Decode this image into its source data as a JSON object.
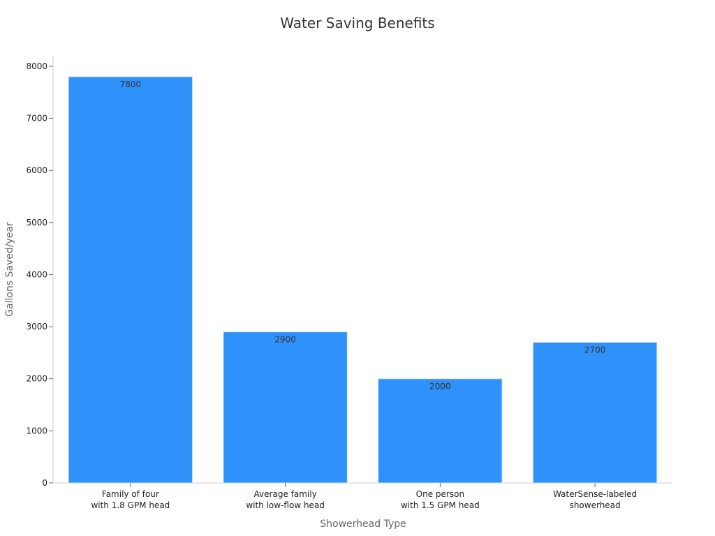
{
  "chart_data": {
    "type": "bar",
    "title": "Water Saving Benefits",
    "xlabel": "Showerhead Type",
    "ylabel": "Gallons Saved/year",
    "categories": [
      [
        "Family of four",
        "with 1.8 GPM head"
      ],
      [
        "Average family",
        "with low-flow head"
      ],
      [
        "One person",
        "with 1.5 GPM head"
      ],
      [
        "WaterSense-labeled",
        "showerhead"
      ]
    ],
    "values": [
      7800,
      2900,
      2000,
      2700
    ],
    "ylim": [
      0,
      8200
    ],
    "yticks": [
      0,
      1000,
      2000,
      3000,
      4000,
      5000,
      6000,
      7000,
      8000
    ],
    "grid": false,
    "legend": "none",
    "bar_color": "#2f91fa",
    "data_labels": true
  }
}
